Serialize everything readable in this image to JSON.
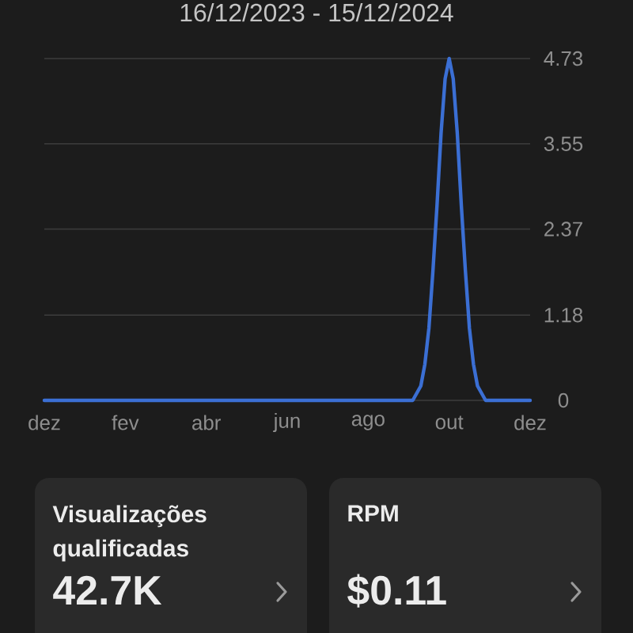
{
  "chart_data": [
    {
      "type": "line",
      "title": "16/12/2023 - 15/12/2024",
      "categories": [
        "dez",
        null,
        null,
        null,
        null,
        null,
        null,
        null,
        null,
        null,
        null,
        null,
        null,
        null,
        null,
        null,
        null,
        null,
        null,
        null,
        "fev",
        null,
        null,
        null,
        null,
        null,
        null,
        null,
        null,
        null,
        null,
        null,
        null,
        null,
        null,
        null,
        null,
        null,
        null,
        null,
        "abr",
        null,
        null,
        null,
        null,
        null,
        null,
        null,
        null,
        null,
        null,
        null,
        null,
        null,
        null,
        null,
        null,
        null,
        null,
        null,
        "jun",
        null,
        null,
        null,
        null,
        null,
        null,
        null,
        null,
        null,
        null,
        null,
        null,
        null,
        null,
        null,
        null,
        null,
        null,
        null,
        "ago",
        null,
        null,
        null,
        null,
        null,
        null,
        null,
        null,
        null,
        null,
        null,
        null,
        null,
        null,
        null,
        null,
        null,
        null,
        null,
        "out",
        null,
        null,
        null,
        null,
        null,
        null,
        null,
        null,
        null,
        null,
        null,
        null,
        null,
        null,
        null,
        null,
        null,
        null,
        null,
        "dez"
      ],
      "values": [
        0,
        0,
        0,
        0,
        0,
        0,
        0,
        0,
        0,
        0,
        0,
        0,
        0,
        0,
        0,
        0,
        0,
        0,
        0,
        0,
        0,
        0,
        0,
        0,
        0,
        0,
        0,
        0,
        0,
        0,
        0,
        0,
        0,
        0,
        0,
        0,
        0,
        0,
        0,
        0,
        0,
        0,
        0,
        0,
        0,
        0,
        0,
        0,
        0,
        0,
        0,
        0,
        0,
        0,
        0,
        0,
        0,
        0,
        0,
        0,
        0,
        0,
        0,
        0,
        0,
        0,
        0,
        0,
        0,
        0,
        0,
        0,
        0,
        0,
        0,
        0,
        0,
        0,
        0,
        0,
        0,
        0,
        0,
        0,
        0,
        0,
        0,
        0,
        0,
        0,
        0,
        0,
        0.1,
        0.2,
        0.5,
        1.0,
        1.8,
        2.7,
        3.7,
        4.45,
        4.73,
        4.45,
        3.7,
        2.7,
        1.8,
        1.0,
        0.5,
        0.2,
        0.1,
        0,
        0,
        0,
        0,
        0,
        0,
        0,
        0,
        0,
        0,
        0,
        0
      ],
      "color": "#3b6fd4",
      "ylim": [
        0,
        4.73
      ],
      "yticks": [
        0,
        1.18,
        2.37,
        3.55,
        4.73
      ],
      "grid": "y"
    },
    {
      "type": "other",
      "title": "Visualizações qualificadas",
      "annotations": [
        "42.7K"
      ]
    },
    {
      "type": "other",
      "title": "RPM",
      "annotations": [
        "$0.11"
      ]
    }
  ]
}
